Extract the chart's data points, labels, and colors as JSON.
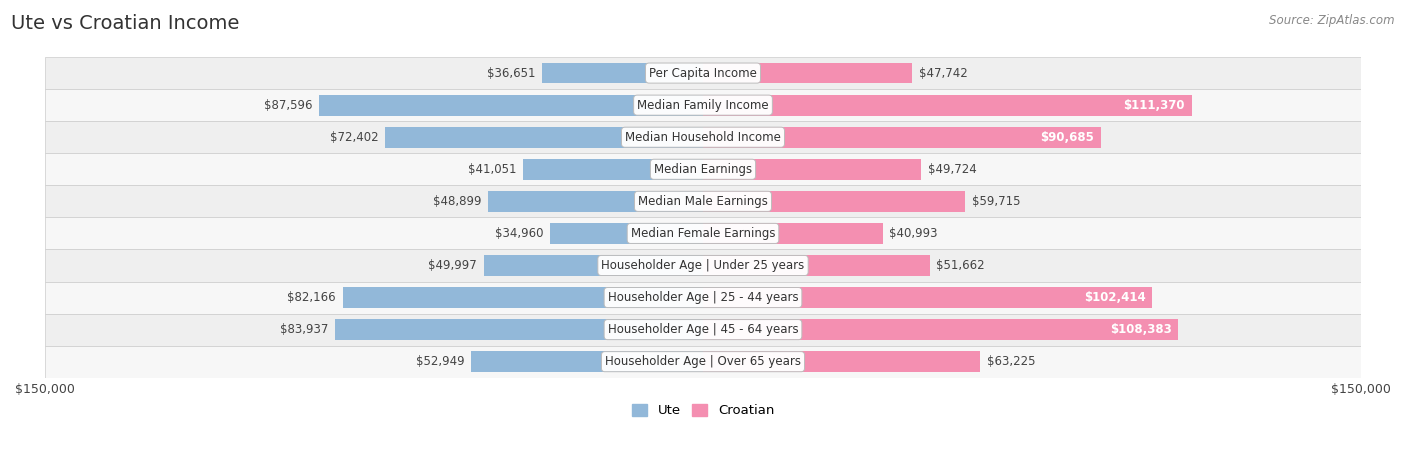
{
  "title": "Ute vs Croatian Income",
  "source": "Source: ZipAtlas.com",
  "categories": [
    "Per Capita Income",
    "Median Family Income",
    "Median Household Income",
    "Median Earnings",
    "Median Male Earnings",
    "Median Female Earnings",
    "Householder Age | Under 25 years",
    "Householder Age | 25 - 44 years",
    "Householder Age | 45 - 64 years",
    "Householder Age | Over 65 years"
  ],
  "ute_values": [
    36651,
    87596,
    72402,
    41051,
    48899,
    34960,
    49997,
    82166,
    83937,
    52949
  ],
  "croatian_values": [
    47742,
    111370,
    90685,
    49724,
    59715,
    40993,
    51662,
    102414,
    108383,
    63225
  ],
  "ute_color": "#92b8d9",
  "croatian_color": "#f48fb1",
  "row_bg_even": "#efefef",
  "row_bg_odd": "#f7f7f7",
  "max_val": 150000,
  "title_fontsize": 14,
  "label_fontsize": 8.5,
  "value_fontsize": 8.5,
  "legend_fontsize": 9.5,
  "axis_label_fontsize": 9
}
